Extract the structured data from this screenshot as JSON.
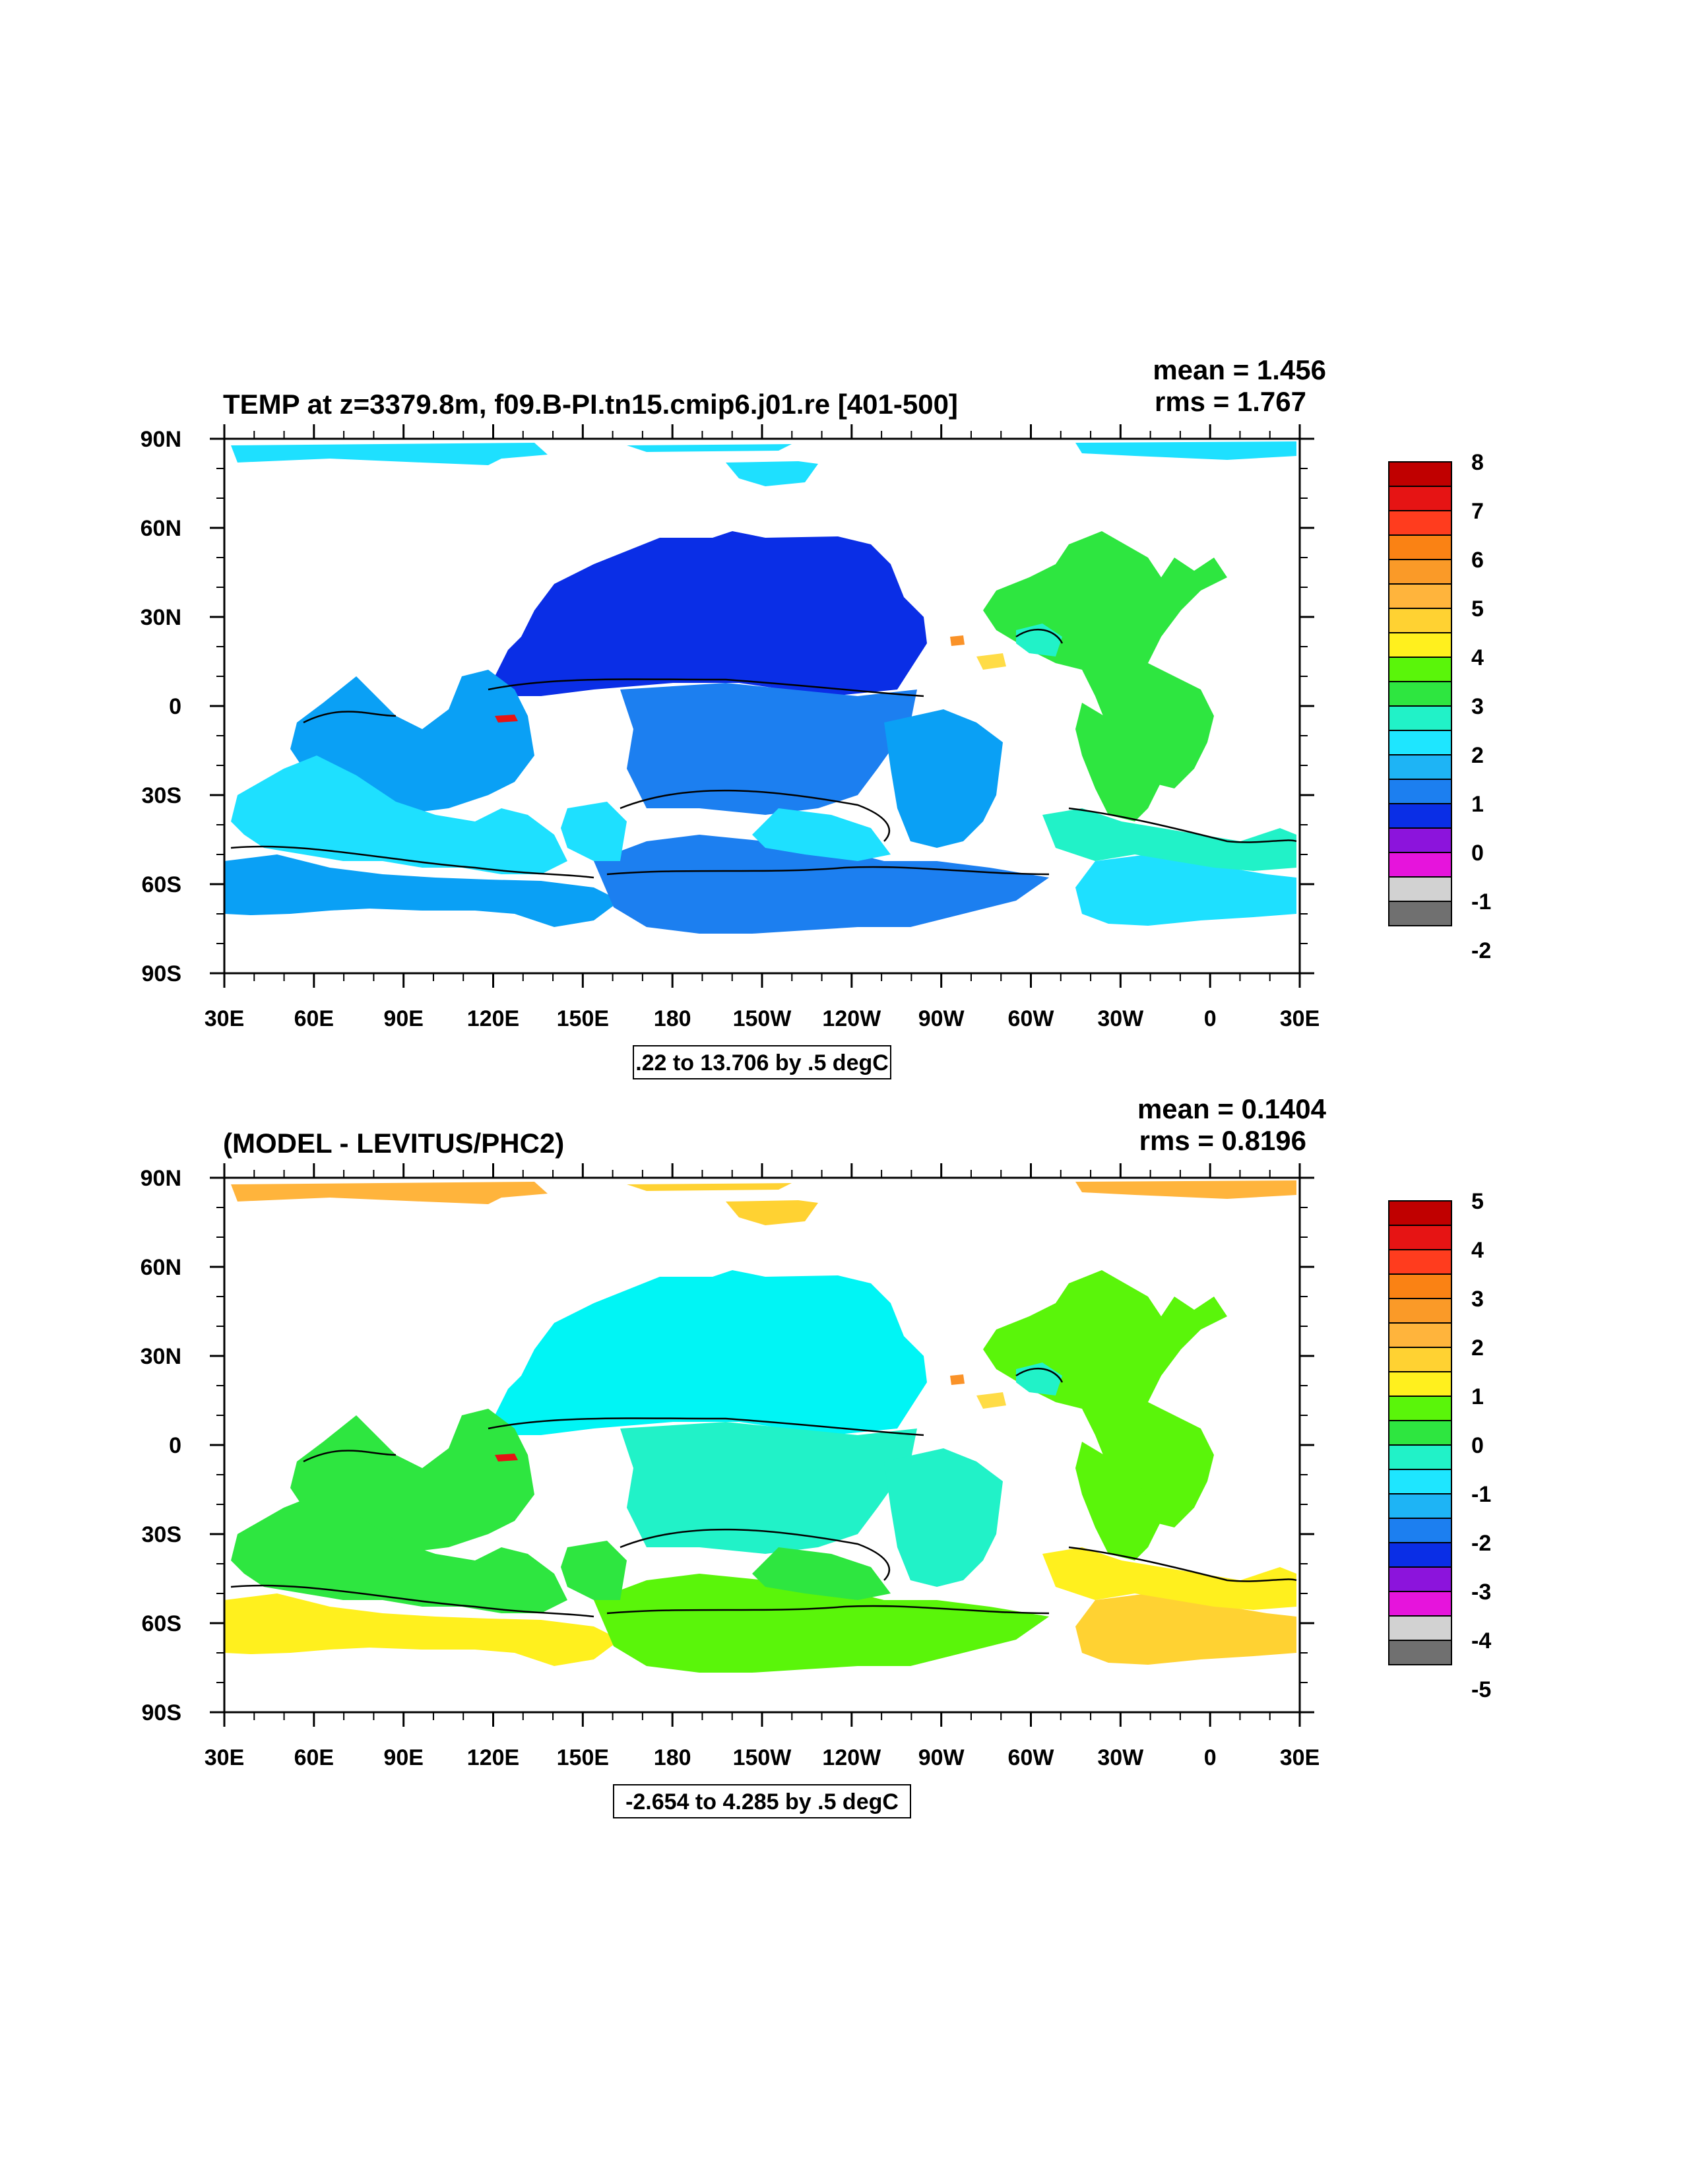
{
  "panels": [
    {
      "title": "TEMP at z=3379.8m, f09.B-PI.tn15.cmip6.j01.re [401-500]",
      "mean_text": "mean = 1.456",
      "rms_text": "rms = 1.767",
      "contour_info": ".22 to 13.706 by .5 degC",
      "colorbar_labels": [
        "8",
        "7",
        "6",
        "5",
        "4",
        "3",
        "2",
        "1",
        "0",
        "-1",
        "-2"
      ],
      "regions": [
        {
          "name": "arctic-west",
          "color": "#1ee0ff"
        },
        {
          "name": "arctic-central",
          "color": "#1ee0ff"
        },
        {
          "name": "arctic-east",
          "color": "#1ee0ff"
        },
        {
          "name": "north-pacific",
          "color": "#0a2ee6"
        },
        {
          "name": "west-pacific-patch",
          "color": "#0a2ee6"
        },
        {
          "name": "central-pacific",
          "color": "#1c7ff0"
        },
        {
          "name": "east-pacific",
          "color": "#0aa0f5"
        },
        {
          "name": "north-atlantic",
          "color": "#2ee640"
        },
        {
          "name": "south-atlantic",
          "color": "#2ee640"
        },
        {
          "name": "gulf-mexico",
          "color": "#21f2c8"
        },
        {
          "name": "indian-ocean",
          "color": "#0aa0f5"
        },
        {
          "name": "indian-south",
          "color": "#1ee0ff"
        },
        {
          "name": "southern-ocean-indian",
          "color": "#0aa0f5"
        },
        {
          "name": "southern-ocean-pacific",
          "color": "#1c7ff0"
        },
        {
          "name": "south-pacific-mid",
          "color": "#1ee0ff"
        },
        {
          "name": "southern-ocean-atlantic",
          "color": "#1ee0ff"
        },
        {
          "name": "atlantic-south-band",
          "color": "#21f2c8"
        },
        {
          "name": "tasman",
          "color": "#1ee0ff"
        },
        {
          "name": "red-patch",
          "color": "#e61414"
        },
        {
          "name": "orange-patch",
          "color": "#fa9228"
        },
        {
          "name": "yellow-patch",
          "color": "#ffdc46"
        }
      ]
    },
    {
      "title": "(MODEL - LEVITUS/PHC2)",
      "mean_text": "mean = 0.1404",
      "rms_text": "rms = 0.8196",
      "contour_info": "-2.654 to 4.285 by .5 degC",
      "colorbar_labels": [
        "5",
        "4",
        "3",
        "2",
        "1",
        "0",
        "-1",
        "-2",
        "-3",
        "-4",
        "-5"
      ],
      "regions": [
        {
          "name": "arctic-west",
          "color": "#ffb43c"
        },
        {
          "name": "arctic-central",
          "color": "#ffd232"
        },
        {
          "name": "arctic-east",
          "color": "#ffb43c"
        },
        {
          "name": "north-pacific",
          "color": "#00f5f5"
        },
        {
          "name": "west-pacific-patch",
          "color": "#00f5f5"
        },
        {
          "name": "central-pacific",
          "color": "#21f2c8"
        },
        {
          "name": "east-pacific",
          "color": "#21f2c8"
        },
        {
          "name": "north-atlantic",
          "color": "#5af50a"
        },
        {
          "name": "south-atlantic",
          "color": "#5af50a"
        },
        {
          "name": "gulf-mexico",
          "color": "#21f2c8"
        },
        {
          "name": "indian-ocean",
          "color": "#2ee640"
        },
        {
          "name": "indian-south",
          "color": "#2ee640"
        },
        {
          "name": "southern-ocean-indian",
          "color": "#fff01e"
        },
        {
          "name": "southern-ocean-pacific",
          "color": "#5af50a"
        },
        {
          "name": "south-pacific-mid",
          "color": "#2ee640"
        },
        {
          "name": "southern-ocean-atlantic",
          "color": "#ffd232"
        },
        {
          "name": "atlantic-south-band",
          "color": "#fff01e"
        },
        {
          "name": "tasman",
          "color": "#2ee640"
        },
        {
          "name": "red-patch",
          "color": "#e61414"
        },
        {
          "name": "orange-patch",
          "color": "#fa9228"
        },
        {
          "name": "yellow-patch",
          "color": "#ffdc46"
        }
      ]
    }
  ],
  "colorbar_colors": [
    "#c00000",
    "#e61414",
    "#ff3c1e",
    "#fa8214",
    "#fa9a28",
    "#ffb43c",
    "#ffd232",
    "#fff01e",
    "#5af50a",
    "#2ee640",
    "#21f2c8",
    "#1ee6ff",
    "#1eb4f5",
    "#1c7ff0",
    "#0a2ee6",
    "#8c14dc",
    "#e614dc",
    "#d2d2d2",
    "#707070"
  ],
  "x_tick_labels": [
    "30E",
    "60E",
    "90E",
    "120E",
    "150E",
    "180",
    "150W",
    "120W",
    "90W",
    "60W",
    "30W",
    "0",
    "30E"
  ],
  "y_tick_labels": [
    "90N",
    "60N",
    "30N",
    "0",
    "30S",
    "60S",
    "90S"
  ]
}
